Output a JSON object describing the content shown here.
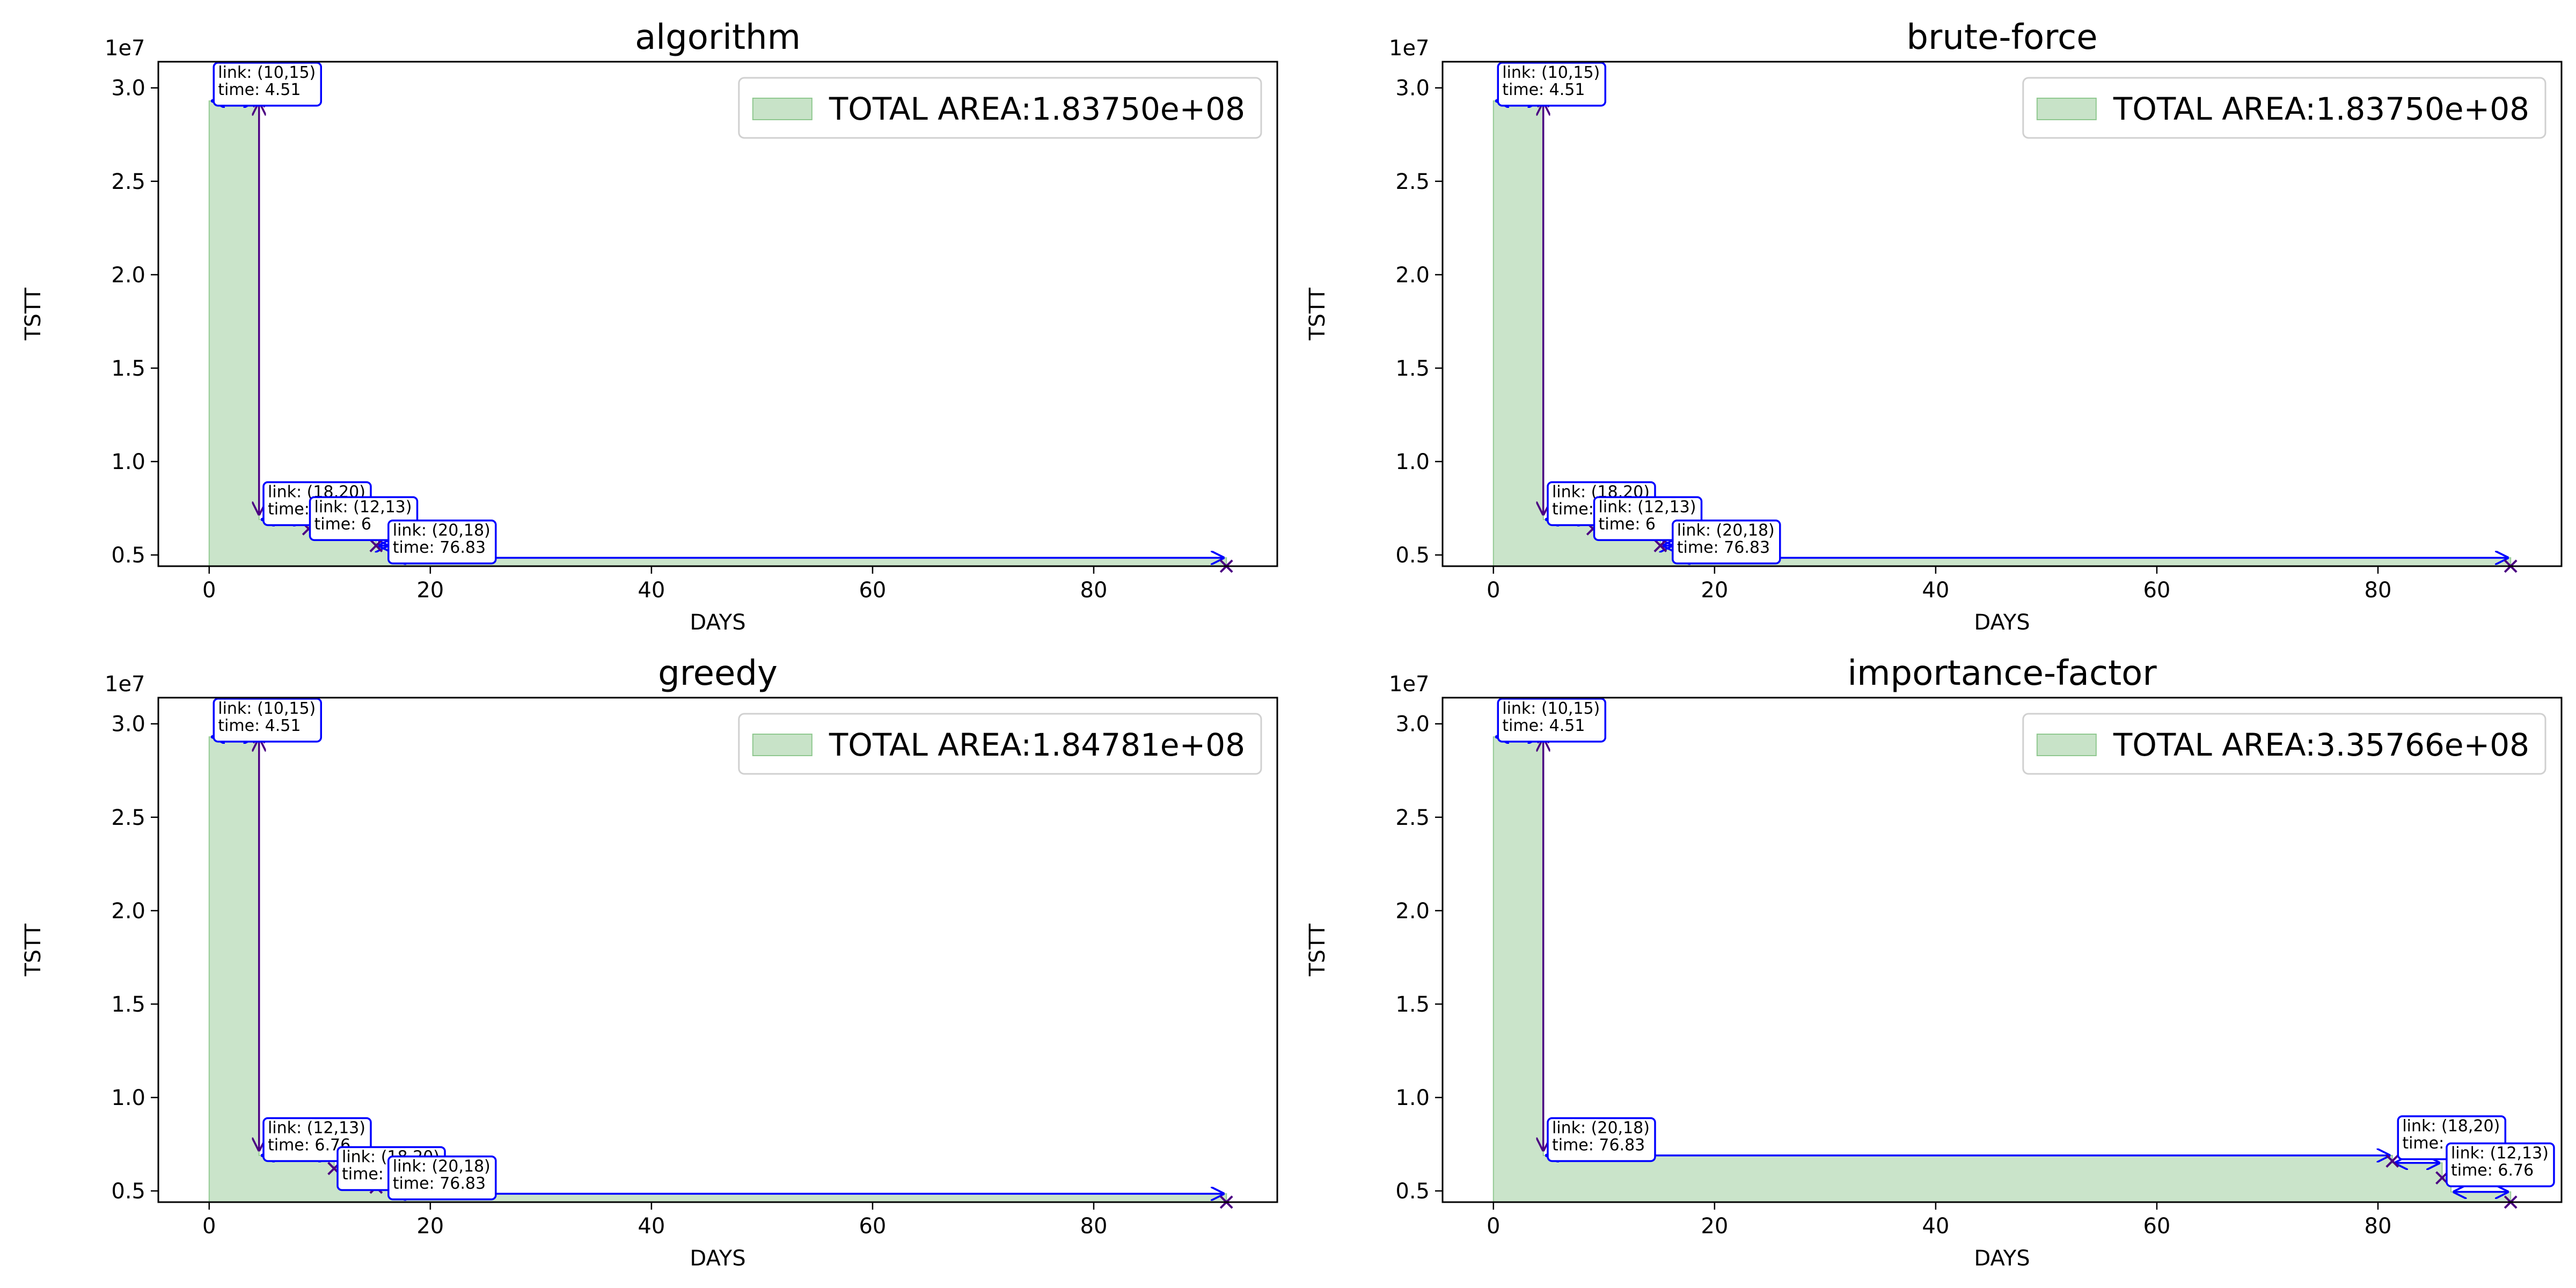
{
  "colors": {
    "fill": "#c8e3c8",
    "fill_edge": "#8fc88f",
    "arrow": "#0000ff",
    "vline": "#4b0082",
    "marker": "#4b0082",
    "annotation_border": "#0000ff"
  },
  "chart_data": [
    {
      "type": "area",
      "title": "algorithm",
      "xlabel": "DAYS",
      "ylabel": "TSTT",
      "y_offset_label": "1e7",
      "xlim": [
        -4.6,
        96.6
      ],
      "ylim": [
        4.4,
        31.4
      ],
      "xticks": [
        0,
        20,
        40,
        60,
        80
      ],
      "yticks": [
        0.5,
        1.0,
        1.5,
        2.0,
        2.5,
        3.0
      ],
      "ytick_labels": [
        "0.5",
        "1.0",
        "1.5",
        "2.0",
        "2.5",
        "3.0"
      ],
      "legend_label": "TOTAL AREA:1.83750e+08",
      "legend_position": "upper right",
      "steps": [
        {
          "x": 0,
          "y": 29.3
        },
        {
          "x": 4.51,
          "y": 6.9
        },
        {
          "x": 9.0,
          "y": 6.4
        },
        {
          "x": 15.1,
          "y": 5.5
        },
        {
          "x": 16.4,
          "y": 4.85
        },
        {
          "x": 92.0,
          "y": 4.85
        }
      ],
      "markers": [
        {
          "x": 4.51,
          "y": 29.3
        },
        {
          "x": 9.0,
          "y": 6.4
        },
        {
          "x": 15.1,
          "y": 5.5
        },
        {
          "x": 92.0,
          "y": 4.4
        }
      ],
      "annotations": [
        {
          "link": "link: (10,15)",
          "time": "time: 4.51",
          "x": 0.8,
          "y": 29.45
        },
        {
          "link": "link: (18,20)",
          "time": "time: 4.51",
          "x": 5.3,
          "y": 7.0
        },
        {
          "link": "link: (12,13)",
          "time": "time: 6",
          "x": 9.5,
          "y": 6.2
        },
        {
          "link": "link: (20,18)",
          "time": "time: 76.83",
          "x": 16.6,
          "y": 4.95
        }
      ]
    },
    {
      "type": "area",
      "title": "brute-force",
      "xlabel": "DAYS",
      "ylabel": "TSTT",
      "y_offset_label": "1e7",
      "xlim": [
        -4.6,
        96.6
      ],
      "ylim": [
        4.4,
        31.4
      ],
      "xticks": [
        0,
        20,
        40,
        60,
        80
      ],
      "yticks": [
        0.5,
        1.0,
        1.5,
        2.0,
        2.5,
        3.0
      ],
      "ytick_labels": [
        "0.5",
        "1.0",
        "1.5",
        "2.0",
        "2.5",
        "3.0"
      ],
      "legend_label": "TOTAL AREA:1.83750e+08",
      "legend_position": "upper right",
      "steps": [
        {
          "x": 0,
          "y": 29.3
        },
        {
          "x": 4.51,
          "y": 6.9
        },
        {
          "x": 9.0,
          "y": 6.4
        },
        {
          "x": 15.1,
          "y": 5.5
        },
        {
          "x": 16.4,
          "y": 4.85
        },
        {
          "x": 92.0,
          "y": 4.85
        }
      ],
      "markers": [
        {
          "x": 4.51,
          "y": 29.3
        },
        {
          "x": 9.0,
          "y": 6.4
        },
        {
          "x": 15.1,
          "y": 5.5
        },
        {
          "x": 92.0,
          "y": 4.4
        }
      ],
      "annotations": [
        {
          "link": "link: (10,15)",
          "time": "time: 4.51",
          "x": 0.8,
          "y": 29.45
        },
        {
          "link": "link: (18,20)",
          "time": "time: 4.51",
          "x": 5.3,
          "y": 7.0
        },
        {
          "link": "link: (12,13)",
          "time": "time: 6",
          "x": 9.5,
          "y": 6.2
        },
        {
          "link": "link: (20,18)",
          "time": "time: 76.83",
          "x": 16.6,
          "y": 4.95
        }
      ]
    },
    {
      "type": "area",
      "title": "greedy",
      "xlabel": "DAYS",
      "ylabel": "TSTT",
      "y_offset_label": "1e7",
      "xlim": [
        -4.6,
        96.6
      ],
      "ylim": [
        4.4,
        31.4
      ],
      "xticks": [
        0,
        20,
        40,
        60,
        80
      ],
      "yticks": [
        0.5,
        1.0,
        1.5,
        2.0,
        2.5,
        3.0
      ],
      "ytick_labels": [
        "0.5",
        "1.0",
        "1.5",
        "2.0",
        "2.5",
        "3.0"
      ],
      "legend_label": "TOTAL AREA:1.84781e+08",
      "legend_position": "upper right",
      "steps": [
        {
          "x": 0,
          "y": 29.3
        },
        {
          "x": 4.51,
          "y": 6.9
        },
        {
          "x": 11.3,
          "y": 6.2
        },
        {
          "x": 11.7,
          "y": 5.4
        },
        {
          "x": 16.4,
          "y": 4.85
        },
        {
          "x": 92.0,
          "y": 4.85
        }
      ],
      "markers": [
        {
          "x": 4.51,
          "y": 29.3
        },
        {
          "x": 11.3,
          "y": 6.2
        },
        {
          "x": 15.1,
          "y": 5.2
        },
        {
          "x": 92.0,
          "y": 4.4
        }
      ],
      "annotations": [
        {
          "link": "link: (10,15)",
          "time": "time: 4.51",
          "x": 0.8,
          "y": 29.45
        },
        {
          "link": "link: (12,13)",
          "time": "time: 6.76",
          "x": 5.3,
          "y": 7.0
        },
        {
          "link": "link: (18,20)",
          "time": "time: ",
          "x": 12.0,
          "y": 5.45
        },
        {
          "link": "link: (20,18)",
          "time": "time: 76.83",
          "x": 16.6,
          "y": 4.95
        }
      ]
    },
    {
      "type": "area",
      "title": "importance-factor",
      "xlabel": "DAYS",
      "ylabel": "TSTT",
      "y_offset_label": "1e7",
      "xlim": [
        -4.6,
        96.6
      ],
      "ylim": [
        4.4,
        31.4
      ],
      "xticks": [
        0,
        20,
        40,
        60,
        80
      ],
      "yticks": [
        0.5,
        1.0,
        1.5,
        2.0,
        2.5,
        3.0
      ],
      "ytick_labels": [
        "0.5",
        "1.0",
        "1.5",
        "2.0",
        "2.5",
        "3.0"
      ],
      "legend_label": "TOTAL AREA:3.35766e+08",
      "legend_position": "upper right",
      "steps": [
        {
          "x": 0,
          "y": 29.3
        },
        {
          "x": 4.51,
          "y": 6.9
        },
        {
          "x": 81.3,
          "y": 6.5
        },
        {
          "x": 85.8,
          "y": 5.7
        },
        {
          "x": 86.6,
          "y": 4.95
        },
        {
          "x": 92.0,
          "y": 4.95
        }
      ],
      "markers": [
        {
          "x": 4.51,
          "y": 29.3
        },
        {
          "x": 81.3,
          "y": 6.6
        },
        {
          "x": 85.8,
          "y": 5.7
        },
        {
          "x": 92.0,
          "y": 4.4
        }
      ],
      "annotations": [
        {
          "link": "link: (10,15)",
          "time": "time: 4.51",
          "x": 0.8,
          "y": 29.45
        },
        {
          "link": "link: (20,18)",
          "time": "time: 76.83",
          "x": 5.3,
          "y": 7.0
        },
        {
          "link": "link: (18,20)",
          "time": "time: ",
          "x": 82.2,
          "y": 7.1
        },
        {
          "link": "link: (12,13)",
          "time": "time: 6.76",
          "x": 86.6,
          "y": 5.65
        }
      ]
    }
  ]
}
